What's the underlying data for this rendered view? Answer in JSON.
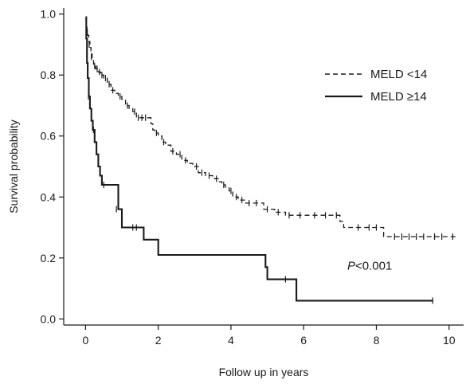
{
  "chart_data": {
    "type": "line",
    "subtype": "kaplan-meier step curve",
    "xlabel": "Follow up in years",
    "ylabel": "Survival probability",
    "xlim": [
      -0.6,
      10.4
    ],
    "ylim": [
      -0.02,
      1.02
    ],
    "xticks": [
      0,
      2,
      4,
      6,
      8,
      10
    ],
    "yticks": [
      0.0,
      0.2,
      0.4,
      0.6,
      0.8,
      1.0
    ],
    "xtick_labels": [
      "0",
      "2",
      "4",
      "6",
      "8",
      "10"
    ],
    "ytick_labels": [
      "0.0",
      "0.2",
      "0.4",
      "0.6",
      "0.8",
      "1.0"
    ],
    "grid": false,
    "legend_position": "top-right",
    "annotation": {
      "italic": "P",
      "rest": "<0.001",
      "x": 7.2,
      "y": 0.175
    },
    "series": [
      {
        "name": "MELD <14",
        "style": "dashed",
        "color": "#1a1a1a",
        "steps": [
          [
            0.0,
            0.98
          ],
          [
            0.02,
            0.96
          ],
          [
            0.04,
            0.94
          ],
          [
            0.06,
            0.93
          ],
          [
            0.09,
            0.91
          ],
          [
            0.12,
            0.89
          ],
          [
            0.15,
            0.87
          ],
          [
            0.18,
            0.85
          ],
          [
            0.22,
            0.83
          ],
          [
            0.28,
            0.82
          ],
          [
            0.35,
            0.81
          ],
          [
            0.42,
            0.8
          ],
          [
            0.5,
            0.79
          ],
          [
            0.6,
            0.77
          ],
          [
            0.7,
            0.75
          ],
          [
            0.8,
            0.74
          ],
          [
            0.9,
            0.73
          ],
          [
            1.0,
            0.72
          ],
          [
            1.1,
            0.7
          ],
          [
            1.2,
            0.69
          ],
          [
            1.3,
            0.68
          ],
          [
            1.4,
            0.66
          ],
          [
            1.7,
            0.66
          ],
          [
            1.8,
            0.64
          ],
          [
            1.85,
            0.62
          ],
          [
            1.9,
            0.61
          ],
          [
            2.0,
            0.6
          ],
          [
            2.1,
            0.58
          ],
          [
            2.2,
            0.57
          ],
          [
            2.35,
            0.55
          ],
          [
            2.5,
            0.54
          ],
          [
            2.65,
            0.52
          ],
          [
            2.8,
            0.51
          ],
          [
            2.95,
            0.5
          ],
          [
            3.1,
            0.48
          ],
          [
            3.3,
            0.47
          ],
          [
            3.5,
            0.46
          ],
          [
            3.65,
            0.45
          ],
          [
            3.75,
            0.44
          ],
          [
            3.85,
            0.43
          ],
          [
            3.95,
            0.42
          ],
          [
            4.05,
            0.4
          ],
          [
            4.2,
            0.39
          ],
          [
            4.4,
            0.38
          ],
          [
            4.6,
            0.38
          ],
          [
            4.9,
            0.36
          ],
          [
            5.2,
            0.35
          ],
          [
            5.5,
            0.34
          ],
          [
            6.0,
            0.34
          ],
          [
            6.8,
            0.34
          ],
          [
            7.0,
            0.32
          ],
          [
            7.1,
            0.3
          ],
          [
            8.1,
            0.3
          ],
          [
            8.2,
            0.27
          ],
          [
            10.2,
            0.27
          ]
        ],
        "censored": [
          [
            0.05,
            0.94
          ],
          [
            0.1,
            0.9
          ],
          [
            0.16,
            0.86
          ],
          [
            0.25,
            0.83
          ],
          [
            0.32,
            0.82
          ],
          [
            0.38,
            0.81
          ],
          [
            0.45,
            0.8
          ],
          [
            0.55,
            0.79
          ],
          [
            0.65,
            0.77
          ],
          [
            0.75,
            0.75
          ],
          [
            0.95,
            0.73
          ],
          [
            1.15,
            0.7
          ],
          [
            1.35,
            0.68
          ],
          [
            1.45,
            0.66
          ],
          [
            1.55,
            0.66
          ],
          [
            1.65,
            0.66
          ],
          [
            1.95,
            0.61
          ],
          [
            2.15,
            0.58
          ],
          [
            2.4,
            0.55
          ],
          [
            2.6,
            0.54
          ],
          [
            2.75,
            0.52
          ],
          [
            3.05,
            0.5
          ],
          [
            3.2,
            0.48
          ],
          [
            3.4,
            0.47
          ],
          [
            3.6,
            0.46
          ],
          [
            3.8,
            0.44
          ],
          [
            4.0,
            0.42
          ],
          [
            4.15,
            0.4
          ],
          [
            4.3,
            0.39
          ],
          [
            4.5,
            0.38
          ],
          [
            4.7,
            0.38
          ],
          [
            5.0,
            0.36
          ],
          [
            5.3,
            0.35
          ],
          [
            5.6,
            0.34
          ],
          [
            5.9,
            0.34
          ],
          [
            6.3,
            0.34
          ],
          [
            6.6,
            0.34
          ],
          [
            6.9,
            0.34
          ],
          [
            7.5,
            0.3
          ],
          [
            7.8,
            0.3
          ],
          [
            8.0,
            0.3
          ],
          [
            8.5,
            0.27
          ],
          [
            8.7,
            0.27
          ],
          [
            8.9,
            0.27
          ],
          [
            9.1,
            0.27
          ],
          [
            9.3,
            0.27
          ],
          [
            9.6,
            0.27
          ],
          [
            9.8,
            0.27
          ],
          [
            10.1,
            0.27
          ]
        ]
      },
      {
        "name": "MELD ≥14",
        "style": "solid",
        "color": "#1a1a1a",
        "steps": [
          [
            0.0,
            0.99
          ],
          [
            0.02,
            0.92
          ],
          [
            0.04,
            0.84
          ],
          [
            0.06,
            0.79
          ],
          [
            0.09,
            0.73
          ],
          [
            0.12,
            0.69
          ],
          [
            0.16,
            0.65
          ],
          [
            0.2,
            0.62
          ],
          [
            0.25,
            0.58
          ],
          [
            0.3,
            0.54
          ],
          [
            0.35,
            0.5
          ],
          [
            0.4,
            0.47
          ],
          [
            0.45,
            0.44
          ],
          [
            0.9,
            0.36
          ],
          [
            1.0,
            0.3
          ],
          [
            1.6,
            0.26
          ],
          [
            2.0,
            0.21
          ],
          [
            4.95,
            0.17
          ],
          [
            5.0,
            0.13
          ],
          [
            5.8,
            0.06
          ],
          [
            9.55,
            0.06
          ]
        ],
        "censored": [
          [
            0.08,
            0.73
          ],
          [
            0.22,
            0.62
          ],
          [
            0.5,
            0.44
          ],
          [
            0.85,
            0.36
          ],
          [
            1.3,
            0.3
          ],
          [
            1.4,
            0.3
          ],
          [
            5.5,
            0.13
          ],
          [
            9.55,
            0.06
          ]
        ]
      }
    ]
  }
}
